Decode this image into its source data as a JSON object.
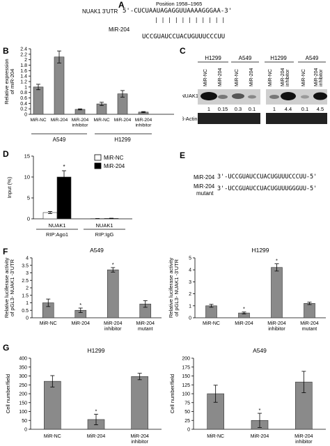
{
  "panels": {
    "A": "A",
    "B": "B",
    "C": "C",
    "D": "D",
    "E": "E",
    "F": "F",
    "G": "G"
  },
  "panelA": {
    "position": "Position 1958–1965",
    "utr_label": "NUAK1 3'UTR",
    "utr_seq": "5'-CUCUAAUAGAGGUUAAAAGGGAA-3'",
    "pair_marks": "| | | |      | | | | | | |",
    "mir_label": "MiR-204",
    "mir_seq": "UCCGUAUCCUACUGUUUCCCUU"
  },
  "panelE": {
    "row1_label": "MiR-204",
    "row1_seq": "3'-UCCGUAUCCUACUGUUUCCCUU-5'",
    "row2_label_a": "MiR-204",
    "row2_label_b": "mutant",
    "row2_seq": "3'-UCCGUAUCCUACUGUUUGGGUU-5'"
  },
  "panelC": {
    "groups": [
      {
        "label": "H1299",
        "lanes": [
          "MiR-NC",
          "MiR-204"
        ]
      },
      {
        "label": "A549",
        "lanes": [
          "MiR-NC",
          "MiR-204"
        ]
      },
      {
        "label": "H1299",
        "lanes": [
          "MiR-NC",
          "MiR-204 inhibitor"
        ]
      },
      {
        "label": "A549",
        "lanes": [
          "MiR-NC",
          "MiR-204 inhibitor"
        ]
      }
    ],
    "row_nuak1": "NUAK1",
    "row_actin": "β-Actin",
    "quant": [
      "1",
      "0.15",
      "0.3",
      "0.1",
      "1",
      "4.4",
      "0.1",
      "4.5"
    ]
  },
  "chart_data": [
    {
      "id": "B",
      "type": "bar",
      "ylabel": "Relative expression of miR-204",
      "ylim": [
        0,
        2.4
      ],
      "yticks": [
        "0",
        "0.2",
        "0.4",
        "0.6",
        "0.8",
        "1",
        "1.2",
        "1.4",
        "1.6",
        "1.8",
        "2",
        "2.2",
        "2.4"
      ],
      "categories": [
        "MiR-NC",
        "MiR-204",
        "MiR-204 inhibitor",
        "MiR-NC",
        "MiR-204",
        "MiR-204 inhibitor"
      ],
      "groups": [
        "A549",
        "H1299"
      ],
      "values": [
        1.0,
        2.1,
        0.18,
        0.38,
        0.75,
        0.08
      ],
      "errors": [
        0.1,
        0.22,
        0.02,
        0.06,
        0.12,
        0.02
      ]
    },
    {
      "id": "D",
      "type": "bar",
      "ylabel": "Input (%)",
      "ylim": [
        0,
        15
      ],
      "yticks": [
        "0",
        "5",
        "10",
        "15"
      ],
      "groups": [
        {
          "top": "NUAK1",
          "bottom": "RIP:Ago1"
        },
        {
          "top": "NUAK1",
          "bottom": "RIP:IgG"
        }
      ],
      "series": [
        {
          "name": "MiR-NC",
          "fill": "#ffffff",
          "values": [
            1.5,
            0.05
          ],
          "errors": [
            0.25,
            0.02
          ]
        },
        {
          "name": "MiR-204",
          "fill": "#000000",
          "values": [
            10.0,
            0.1
          ],
          "errors": [
            1.5,
            0.05
          ]
        }
      ],
      "star": "*"
    },
    {
      "id": "F1",
      "type": "bar",
      "title": "A549",
      "ylabel": "Relative luciferase activity of pGL3- NUAK1 -3'UTR",
      "ylim": [
        0,
        4
      ],
      "yticks": [
        "0",
        "0.5",
        "1",
        "1.5",
        "2",
        "2.5",
        "3",
        "3.5",
        "4"
      ],
      "categories": [
        "MiR-NC",
        "MiR-204",
        "MiR-204 inhibitor",
        "MiR-204 mutant"
      ],
      "values": [
        1.0,
        0.5,
        3.2,
        0.92
      ],
      "errors": [
        0.25,
        0.15,
        0.15,
        0.22
      ],
      "star": [
        false,
        true,
        true,
        false
      ]
    },
    {
      "id": "F2",
      "type": "bar",
      "title": "H1299",
      "ylabel": "Relative luciferase activity of pGL3- NUAK1 -3'UTR",
      "ylim": [
        0,
        5
      ],
      "yticks": [
        "0",
        "1",
        "2",
        "3",
        "4",
        "5"
      ],
      "categories": [
        "MiR-NC",
        "MiR-204",
        "MiR-204 inhibitor",
        "MiR-204 mutant"
      ],
      "values": [
        1.0,
        0.4,
        4.2,
        1.2
      ],
      "errors": [
        0.12,
        0.08,
        0.3,
        0.1
      ],
      "star": [
        false,
        true,
        true,
        false
      ]
    },
    {
      "id": "G1",
      "type": "bar",
      "title": "H1299",
      "ylabel": "Cell number/field",
      "ylim": [
        0,
        400
      ],
      "yticks": [
        "0",
        "50",
        "100",
        "150",
        "200",
        "250",
        "300",
        "350",
        "400"
      ],
      "categories": [
        "MiR-NC",
        "MiR-204",
        "MiR-204 inhibitor"
      ],
      "values": [
        270,
        55,
        297
      ],
      "errors": [
        32,
        30,
        18
      ],
      "star": [
        false,
        true,
        false
      ]
    },
    {
      "id": "G2",
      "type": "bar",
      "title": "A549",
      "ylabel": "Cell number/field",
      "ylim": [
        0,
        200
      ],
      "yticks": [
        "0",
        "25",
        "50",
        "75",
        "100",
        "125",
        "150",
        "175",
        "200"
      ],
      "categories": [
        "MiR-NC",
        "MiR-204",
        "MiR-204 inhibitor"
      ],
      "values": [
        100,
        25,
        133
      ],
      "errors": [
        24,
        20,
        30
      ],
      "star": [
        false,
        true,
        false
      ]
    }
  ]
}
